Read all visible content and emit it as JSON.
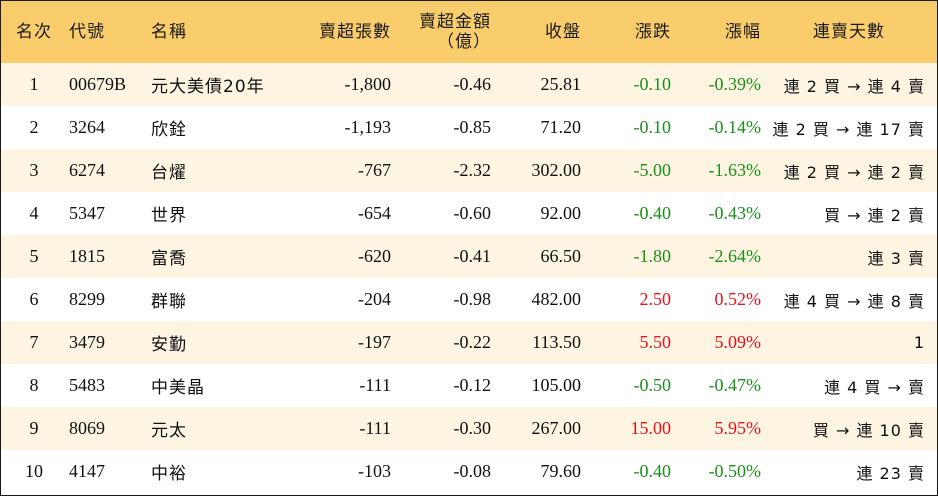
{
  "colors": {
    "header_bg": "#f9cd6b",
    "row_odd_bg": "#fdf4e1",
    "row_even_bg": "#ffffff",
    "positive": "#e6141e",
    "negative": "#1a8f1a"
  },
  "header": {
    "rank": "名次",
    "code": "代號",
    "name": "名稱",
    "sell_shares": "賣超張數",
    "sell_amount_line1": "賣超金額",
    "sell_amount_line2": "（億）",
    "close": "收盤",
    "change": "漲跌",
    "change_pct": "漲幅",
    "consecutive_days": "連賣天數"
  },
  "rows": [
    {
      "rank": "1",
      "code": "00679B",
      "name": "元大美債20年",
      "sell_shares": "-1,800",
      "sell_amount": "-0.46",
      "close": "25.81",
      "change": "-0.10",
      "change_pct": "-0.39%",
      "direction": "down",
      "days": "連 2 買 → 連 4 賣"
    },
    {
      "rank": "2",
      "code": "3264",
      "name": "欣銓",
      "sell_shares": "-1,193",
      "sell_amount": "-0.85",
      "close": "71.20",
      "change": "-0.10",
      "change_pct": "-0.14%",
      "direction": "down",
      "days": "連 2 買 → 連 17 賣"
    },
    {
      "rank": "3",
      "code": "6274",
      "name": "台燿",
      "sell_shares": "-767",
      "sell_amount": "-2.32",
      "close": "302.00",
      "change": "-5.00",
      "change_pct": "-1.63%",
      "direction": "down",
      "days": "連 2 買 → 連 2 賣"
    },
    {
      "rank": "4",
      "code": "5347",
      "name": "世界",
      "sell_shares": "-654",
      "sell_amount": "-0.60",
      "close": "92.00",
      "change": "-0.40",
      "change_pct": "-0.43%",
      "direction": "down",
      "days": "買 → 連 2 賣"
    },
    {
      "rank": "5",
      "code": "1815",
      "name": "富喬",
      "sell_shares": "-620",
      "sell_amount": "-0.41",
      "close": "66.50",
      "change": "-1.80",
      "change_pct": "-2.64%",
      "direction": "down",
      "days": "連 3 賣"
    },
    {
      "rank": "6",
      "code": "8299",
      "name": "群聯",
      "sell_shares": "-204",
      "sell_amount": "-0.98",
      "close": "482.00",
      "change": "2.50",
      "change_pct": "0.52%",
      "direction": "up",
      "days": "連 4 買 → 連 8 賣"
    },
    {
      "rank": "7",
      "code": "3479",
      "name": "安勤",
      "sell_shares": "-197",
      "sell_amount": "-0.22",
      "close": "113.50",
      "change": "5.50",
      "change_pct": "5.09%",
      "direction": "up",
      "days": "1"
    },
    {
      "rank": "8",
      "code": "5483",
      "name": "中美晶",
      "sell_shares": "-111",
      "sell_amount": "-0.12",
      "close": "105.00",
      "change": "-0.50",
      "change_pct": "-0.47%",
      "direction": "down",
      "days": "連 4 買 → 賣"
    },
    {
      "rank": "9",
      "code": "8069",
      "name": "元太",
      "sell_shares": "-111",
      "sell_amount": "-0.30",
      "close": "267.00",
      "change": "15.00",
      "change_pct": "5.95%",
      "direction": "up",
      "days": "買 → 連 10 賣"
    },
    {
      "rank": "10",
      "code": "4147",
      "name": "中裕",
      "sell_shares": "-103",
      "sell_amount": "-0.08",
      "close": "79.60",
      "change": "-0.40",
      "change_pct": "-0.50%",
      "direction": "down",
      "days": "連 23 賣"
    }
  ]
}
